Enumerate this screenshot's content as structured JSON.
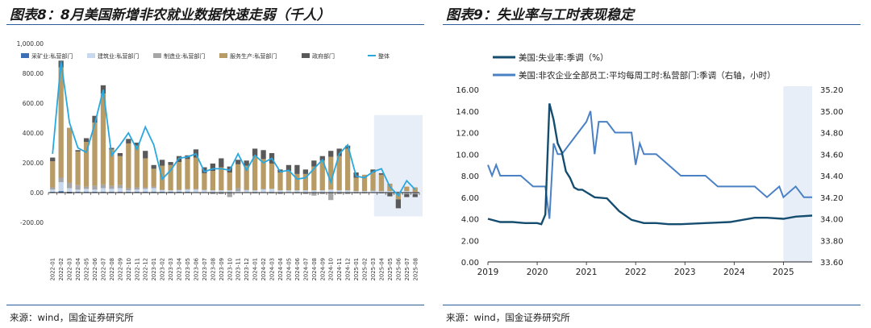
{
  "left": {
    "title": "图表8：8月美国新增非农就业数据快速走弱（千人）",
    "source": "来源：wind，国金证券研究所"
  },
  "right": {
    "title": "图表9：失业率与工时表现稳定",
    "source": "来源：wind，国金证券研究所"
  },
  "chart_data": [
    {
      "type": "bar",
      "stacked": true,
      "categories": [
        "2022-01",
        "2022-02",
        "2022-03",
        "2022-04",
        "2022-05",
        "2022-06",
        "2022-07",
        "2022-08",
        "2022-09",
        "2022-10",
        "2022-11",
        "2022-12",
        "2023-01",
        "2023-02",
        "2023-03",
        "2023-04",
        "2023-05",
        "2023-06",
        "2023-07",
        "2023-08",
        "2023-09",
        "2023-10",
        "2023-11",
        "2023-12",
        "2024-01",
        "2024-02",
        "2024-03",
        "2024-04",
        "2024-05",
        "2024-06",
        "2024-07",
        "2024-08",
        "2024-09",
        "2024-10",
        "2024-11",
        "2024-12",
        "2025-01",
        "2025-02",
        "2025-03",
        "2025-04",
        "2025-05",
        "2025-06",
        "2025-07",
        "2025-08"
      ],
      "ylim": [
        -200,
        1000
      ],
      "yticks": [
        "-200.00",
        "0.00",
        "200.00",
        "400.00",
        "600.00",
        "800.00",
        "1,000.00"
      ],
      "grid": false,
      "legend_position": "top",
      "highlight_range": [
        "2025-04",
        "2025-08"
      ],
      "series": [
        {
          "name": "采矿业:私营部门",
          "color": "#3b6fb6",
          "kind": "bar",
          "values": [
            5,
            10,
            5,
            5,
            5,
            5,
            5,
            5,
            5,
            5,
            5,
            5,
            5,
            5,
            5,
            5,
            5,
            0,
            0,
            0,
            0,
            0,
            0,
            0,
            0,
            0,
            0,
            0,
            0,
            0,
            0,
            0,
            0,
            0,
            0,
            0,
            0,
            0,
            0,
            0,
            0,
            0,
            0,
            0
          ]
        },
        {
          "name": "建筑业:私营部门",
          "color": "#c8d9ee",
          "kind": "bar",
          "values": [
            15,
            60,
            25,
            15,
            20,
            15,
            25,
            20,
            25,
            10,
            15,
            20,
            25,
            10,
            10,
            10,
            15,
            20,
            15,
            15,
            15,
            15,
            10,
            15,
            15,
            20,
            25,
            15,
            15,
            15,
            15,
            15,
            15,
            20,
            15,
            15,
            10,
            10,
            10,
            10,
            10,
            10,
            10,
            5
          ]
        },
        {
          "name": "制造业:私营部门",
          "color": "#a6a6a6",
          "kind": "bar",
          "values": [
            15,
            30,
            35,
            30,
            15,
            25,
            25,
            20,
            20,
            15,
            15,
            10,
            10,
            5,
            0,
            5,
            5,
            5,
            5,
            -10,
            -10,
            -30,
            20,
            5,
            -5,
            5,
            -5,
            -10,
            0,
            -5,
            -10,
            -20,
            -10,
            -50,
            -10,
            -10,
            -5,
            -5,
            5,
            -5,
            -5,
            -5,
            -10,
            -10
          ]
        },
        {
          "name": "服务生产:私营部门",
          "color": "#b99b66",
          "kind": "bar",
          "values": [
            175,
            740,
            370,
            225,
            300,
            425,
            610,
            245,
            195,
            300,
            280,
            195,
            120,
            160,
            170,
            185,
            200,
            210,
            110,
            130,
            155,
            120,
            160,
            160,
            230,
            200,
            170,
            120,
            130,
            110,
            110,
            160,
            200,
            220,
            230,
            280,
            90,
            110,
            120,
            110,
            50,
            -40,
            30,
            30
          ]
        },
        {
          "name": "政府部门",
          "color": "#595959",
          "kind": "bar",
          "values": [
            25,
            45,
            -5,
            10,
            25,
            45,
            55,
            10,
            20,
            30,
            20,
            50,
            25,
            40,
            20,
            40,
            25,
            55,
            40,
            50,
            60,
            40,
            30,
            35,
            50,
            60,
            70,
            20,
            40,
            60,
            30,
            40,
            30,
            40,
            50,
            20,
            35,
            0,
            20,
            10,
            -20,
            -60,
            -20,
            -20
          ]
        },
        {
          "name": "整体",
          "color": "#29a8e0",
          "kind": "line",
          "values": [
            260,
            880,
            470,
            300,
            270,
            460,
            690,
            250,
            320,
            400,
            290,
            440,
            320,
            90,
            150,
            230,
            240,
            260,
            140,
            160,
            160,
            150,
            260,
            150,
            250,
            200,
            230,
            140,
            150,
            90,
            100,
            160,
            220,
            70,
            260,
            320,
            110,
            100,
            140,
            160,
            40,
            -20,
            80,
            20
          ]
        }
      ]
    },
    {
      "type": "line",
      "x_ticks": [
        "2019",
        "2020",
        "2021",
        "2022",
        "2023",
        "2024",
        "2025"
      ],
      "ylim": [
        0,
        16
      ],
      "yticks": [
        "0.00",
        "2.00",
        "4.00",
        "6.00",
        "8.00",
        "10.00",
        "12.00",
        "14.00",
        "16.00"
      ],
      "y2lim": [
        33.6,
        35.2
      ],
      "y2ticks": [
        "33.60",
        "33.80",
        "34.00",
        "34.20",
        "34.40",
        "34.60",
        "34.80",
        "35.00",
        "35.20"
      ],
      "grid": false,
      "legend_position": "top",
      "highlight_range": [
        "2025-01",
        "2025-08"
      ],
      "series": [
        {
          "name": "美国:失业率:季调（%）",
          "axis": "left",
          "color": "#144d6f",
          "x": [
            "2019-01",
            "2019-04",
            "2019-07",
            "2019-10",
            "2020-01",
            "2020-02",
            "2020-03",
            "2020-04",
            "2020-05",
            "2020-06",
            "2020-07",
            "2020-08",
            "2020-09",
            "2020-10",
            "2020-11",
            "2020-12",
            "2021-03",
            "2021-06",
            "2021-09",
            "2021-12",
            "2022-03",
            "2022-06",
            "2022-09",
            "2022-12",
            "2023-06",
            "2023-12",
            "2024-06",
            "2024-09",
            "2025-01",
            "2025-04",
            "2025-08"
          ],
          "values": [
            4.0,
            3.7,
            3.7,
            3.6,
            3.6,
            3.5,
            4.4,
            14.7,
            13.2,
            11.0,
            10.2,
            8.4,
            7.8,
            6.9,
            6.7,
            6.7,
            6.0,
            5.9,
            4.7,
            3.9,
            3.6,
            3.6,
            3.5,
            3.5,
            3.6,
            3.7,
            4.1,
            4.1,
            4.0,
            4.2,
            4.3
          ]
        },
        {
          "name": "美国:非农企业全部员工:平均每周工时:私营部门:季调（右轴，小时）",
          "axis": "right",
          "color": "#4a80c4",
          "x": [
            "2019-01",
            "2019-02",
            "2019-03",
            "2019-04",
            "2019-06",
            "2019-09",
            "2019-12",
            "2020-03",
            "2020-04",
            "2020-05",
            "2020-06",
            "2020-07",
            "2020-09",
            "2020-11",
            "2021-01",
            "2021-02",
            "2021-03",
            "2021-04",
            "2021-06",
            "2021-08",
            "2021-10",
            "2021-12",
            "2022-01",
            "2022-02",
            "2022-03",
            "2022-06",
            "2022-09",
            "2022-12",
            "2023-03",
            "2023-06",
            "2023-09",
            "2023-12",
            "2024-03",
            "2024-06",
            "2024-09",
            "2024-12",
            "2025-01",
            "2025-04",
            "2025-06",
            "2025-08"
          ],
          "values": [
            34.5,
            34.4,
            34.5,
            34.4,
            34.4,
            34.4,
            34.3,
            34.3,
            34.0,
            34.7,
            34.6,
            34.6,
            34.7,
            34.8,
            34.9,
            35.0,
            34.6,
            34.9,
            34.9,
            34.8,
            34.8,
            34.8,
            34.5,
            34.7,
            34.6,
            34.6,
            34.5,
            34.4,
            34.4,
            34.4,
            34.3,
            34.3,
            34.3,
            34.3,
            34.2,
            34.3,
            34.2,
            34.3,
            34.2,
            34.2
          ]
        }
      ]
    }
  ]
}
